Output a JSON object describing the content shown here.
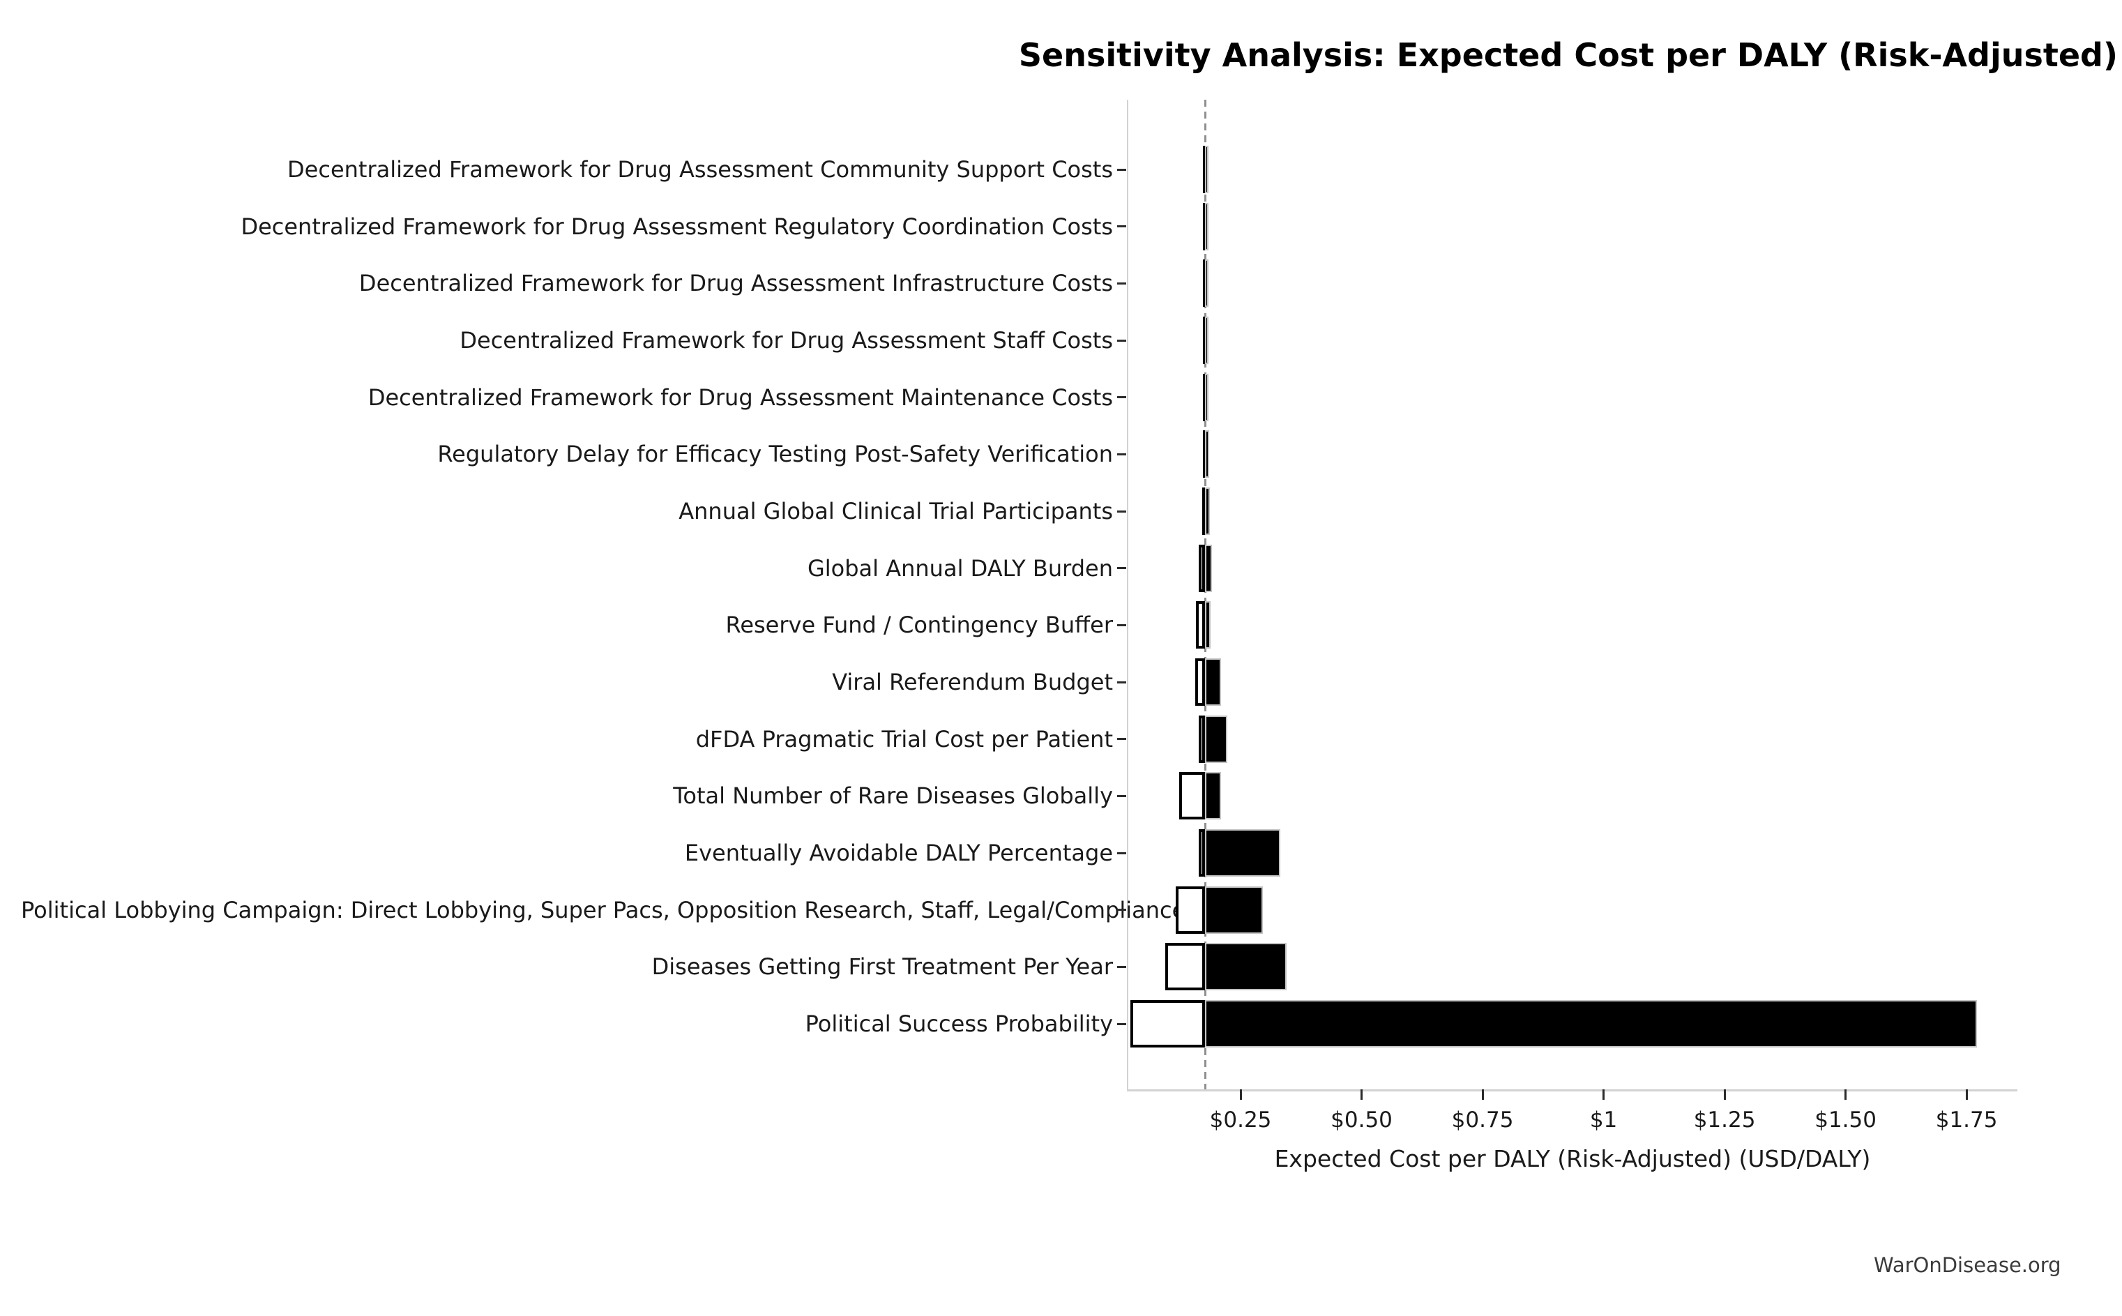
{
  "watermark": "WarOnDisease.org",
  "chart_data": {
    "type": "bar",
    "variant": "tornado-sensitivity",
    "orientation": "horizontal",
    "title": "Sensitivity Analysis: Expected Cost per DALY (Risk-Adjusted)",
    "xlabel": "Expected Cost per DALY (Risk-Adjusted) (USD/DALY)",
    "grid": false,
    "legend": false,
    "baseline_value": 0.177,
    "xlim": [
      0.018,
      1.855
    ],
    "xticks": [
      0.25,
      0.5,
      0.75,
      1.0,
      1.25,
      1.5,
      1.75
    ],
    "xtick_labels": [
      "$0.25",
      "$0.50",
      "$0.75",
      "$1",
      "$1.25",
      "$1.50",
      "$1.75"
    ],
    "rows": [
      {
        "label": "Decentralized Framework for Drug Assessment Community Support Costs",
        "low": 0.172,
        "high": 0.184
      },
      {
        "label": "Decentralized Framework for Drug Assessment Regulatory Coordination Costs",
        "low": 0.172,
        "high": 0.184
      },
      {
        "label": "Decentralized Framework for Drug Assessment Infrastructure Costs",
        "low": 0.172,
        "high": 0.184
      },
      {
        "label": "Decentralized Framework for Drug Assessment Staff Costs",
        "low": 0.172,
        "high": 0.184
      },
      {
        "label": "Decentralized Framework for Drug Assessment Maintenance Costs",
        "low": 0.172,
        "high": 0.184
      },
      {
        "label": "Regulatory Delay for Efficacy Testing Post-Safety Verification",
        "low": 0.172,
        "high": 0.185
      },
      {
        "label": "Annual Global Clinical Trial Participants",
        "low": 0.171,
        "high": 0.186
      },
      {
        "label": "Global Annual DALY Burden",
        "low": 0.164,
        "high": 0.191
      },
      {
        "label": "Reserve Fund / Contingency Buffer",
        "low": 0.158,
        "high": 0.188
      },
      {
        "label": "Viral Referendum Budget",
        "low": 0.157,
        "high": 0.21
      },
      {
        "label": "dFDA Pragmatic Trial Cost per Patient",
        "low": 0.164,
        "high": 0.222
      },
      {
        "label": "Total Number of Rare Diseases Globally",
        "low": 0.123,
        "high": 0.209
      },
      {
        "label": "Eventually Avoidable DALY Percentage",
        "low": 0.164,
        "high": 0.332
      },
      {
        "label": "Political Lobbying Campaign: Direct Lobbying, Super Pacs, Opposition Research, Staff, Legal/Compliance",
        "low": 0.116,
        "high": 0.296
      },
      {
        "label": "Diseases Getting First Treatment Per Year",
        "low": 0.094,
        "high": 0.345
      },
      {
        "label": "Political Success Probability",
        "low": 0.022,
        "high": 1.772
      }
    ],
    "colors": {
      "high_bar_fill": "#000000",
      "high_bar_edge": "#c4c4c4",
      "low_bar_fill": "#ffffff",
      "low_bar_edge": "#000000",
      "baseline_line": "#8f8f8f",
      "spine": "#d2d2d2",
      "tick": "#2b2b2b",
      "text": "#1a1a1a"
    }
  }
}
